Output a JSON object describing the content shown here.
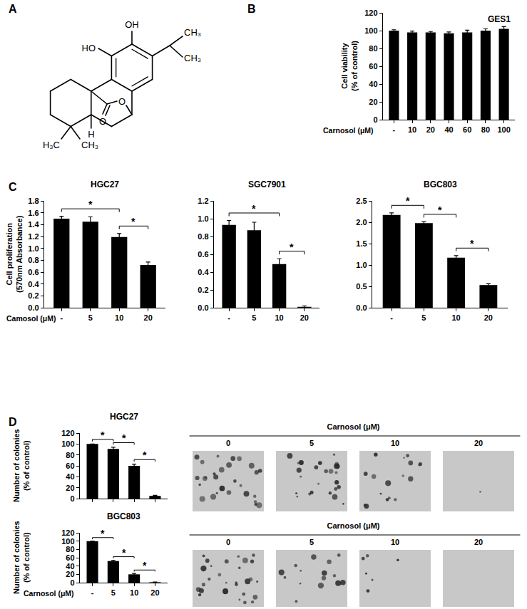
{
  "panels": [
    "A",
    "B",
    "C",
    "D"
  ],
  "structure": {
    "labels": [
      "OH",
      "HO",
      "CH₃",
      "CH₃",
      "O",
      "O",
      "H",
      "H₃C",
      "CH₃"
    ]
  },
  "colony_images": [
    {
      "header": "Carnosol (μM)",
      "labels": [
        "0",
        "5",
        "10",
        "20"
      ]
    },
    {
      "header": "Carnosol (μM)",
      "labels": [
        "0",
        "5",
        "10",
        "20"
      ]
    }
  ],
  "chart_data": [
    {
      "type": "bar",
      "title": "GES1",
      "categories": [
        "-",
        "10",
        "20",
        "40",
        "60",
        "80",
        "100"
      ],
      "values": [
        100,
        98,
        98,
        97,
        98,
        100,
        102
      ],
      "errors": [
        1,
        1.5,
        1,
        1.5,
        2.5,
        2,
        2.5
      ],
      "color": "#000000",
      "xlabel": "Carnosol (μM)",
      "ylabel": "Cell viability\n(% of control)",
      "ylim": [
        0,
        120
      ],
      "yticks": [
        0,
        20,
        40,
        60,
        80,
        100,
        120
      ]
    },
    {
      "type": "bar",
      "title": "HGC27",
      "categories": [
        "-",
        "5",
        "10",
        "20"
      ],
      "values": [
        1.5,
        1.45,
        1.19,
        0.72
      ],
      "errors": [
        0.04,
        0.08,
        0.06,
        0.05
      ],
      "color": "#000000",
      "xlabel": "Camosol (μM)",
      "ylabel": "Cell proliferation\n(570nm Absorbance)",
      "ylim": [
        0,
        1.8
      ],
      "yticks": [
        {
          "value": 0,
          "label": "0.0"
        },
        0.2,
        0.4,
        0.6,
        0.8,
        {
          "value": 1,
          "label": "1.0"
        },
        1.2,
        1.4,
        1.6,
        1.8
      ],
      "annotations": [
        {
          "text": "*",
          "x": [
            "-",
            "10"
          ]
        },
        {
          "text": "*",
          "x": [
            "10",
            "20"
          ]
        }
      ]
    },
    {
      "type": "bar",
      "title": "SGC7901",
      "categories": [
        "-",
        "5",
        "10",
        "20"
      ],
      "values": [
        0.93,
        0.87,
        0.49,
        0.01
      ],
      "errors": [
        0.05,
        0.09,
        0.06,
        0.01
      ],
      "color": "#000000",
      "ylim": [
        0,
        1.2
      ],
      "yticks": [
        {
          "value": 0,
          "label": "0.0"
        },
        0.2,
        0.4,
        0.6,
        0.8,
        {
          "value": 1,
          "label": "1.0"
        },
        1.2
      ],
      "annotations": [
        {
          "text": "*",
          "x": [
            "-",
            "10"
          ]
        },
        {
          "text": "*",
          "x": [
            "10",
            "20"
          ]
        }
      ]
    },
    {
      "type": "bar",
      "title": "BGC803",
      "categories": [
        "-",
        "5",
        "10",
        "20"
      ],
      "values": [
        2.17,
        1.98,
        1.17,
        0.53
      ],
      "errors": [
        0.05,
        0.03,
        0.05,
        0.03
      ],
      "color": "#000000",
      "ylim": [
        0,
        2.5
      ],
      "yticks": [
        {
          "value": 0,
          "label": "0.0"
        },
        0.5,
        {
          "value": 1,
          "label": "1.0"
        },
        1.5,
        {
          "value": 2,
          "label": "2.0"
        },
        2.5
      ],
      "annotations": [
        {
          "text": "*",
          "x": [
            "-",
            "5"
          ]
        },
        {
          "text": "*",
          "x": [
            "5",
            "10"
          ]
        },
        {
          "text": "*",
          "x": [
            "10",
            "20"
          ]
        }
      ]
    },
    {
      "type": "bar",
      "title": "HGC27",
      "categories": [
        "-",
        "5",
        "10",
        "20"
      ],
      "values": [
        100,
        91,
        60,
        5
      ],
      "errors": [
        0,
        3,
        3,
        1
      ],
      "color": "#000000",
      "ylabel": "Number of colonies\n(% of control)",
      "ylim": [
        0,
        120
      ],
      "yticks": [
        0,
        20,
        40,
        60,
        80,
        100,
        120
      ],
      "tick_labels": "y",
      "annotations": [
        {
          "text": "*",
          "x": [
            "-",
            "5"
          ]
        },
        {
          "text": "*",
          "x": [
            "5",
            "10"
          ]
        },
        {
          "text": "*",
          "x": [
            "10",
            "20"
          ]
        }
      ]
    },
    {
      "type": "bar",
      "title": "BGC803",
      "categories": [
        "-",
        "5",
        "10",
        "20"
      ],
      "values": [
        100,
        52,
        20,
        1
      ],
      "errors": [
        0,
        2,
        2,
        0.5
      ],
      "color": "#000000",
      "xlabel": "Carnosol (μM)",
      "ylabel": "Number of colonies\n(% of control)",
      "ylim": [
        0,
        120
      ],
      "yticks": [
        0,
        20,
        40,
        60,
        80,
        100,
        120
      ],
      "annotations": [
        {
          "text": "*",
          "x": [
            "-",
            "5"
          ]
        },
        {
          "text": "*",
          "x": [
            "5",
            "10"
          ]
        },
        {
          "text": "*",
          "x": [
            "10",
            "20"
          ]
        }
      ]
    }
  ]
}
